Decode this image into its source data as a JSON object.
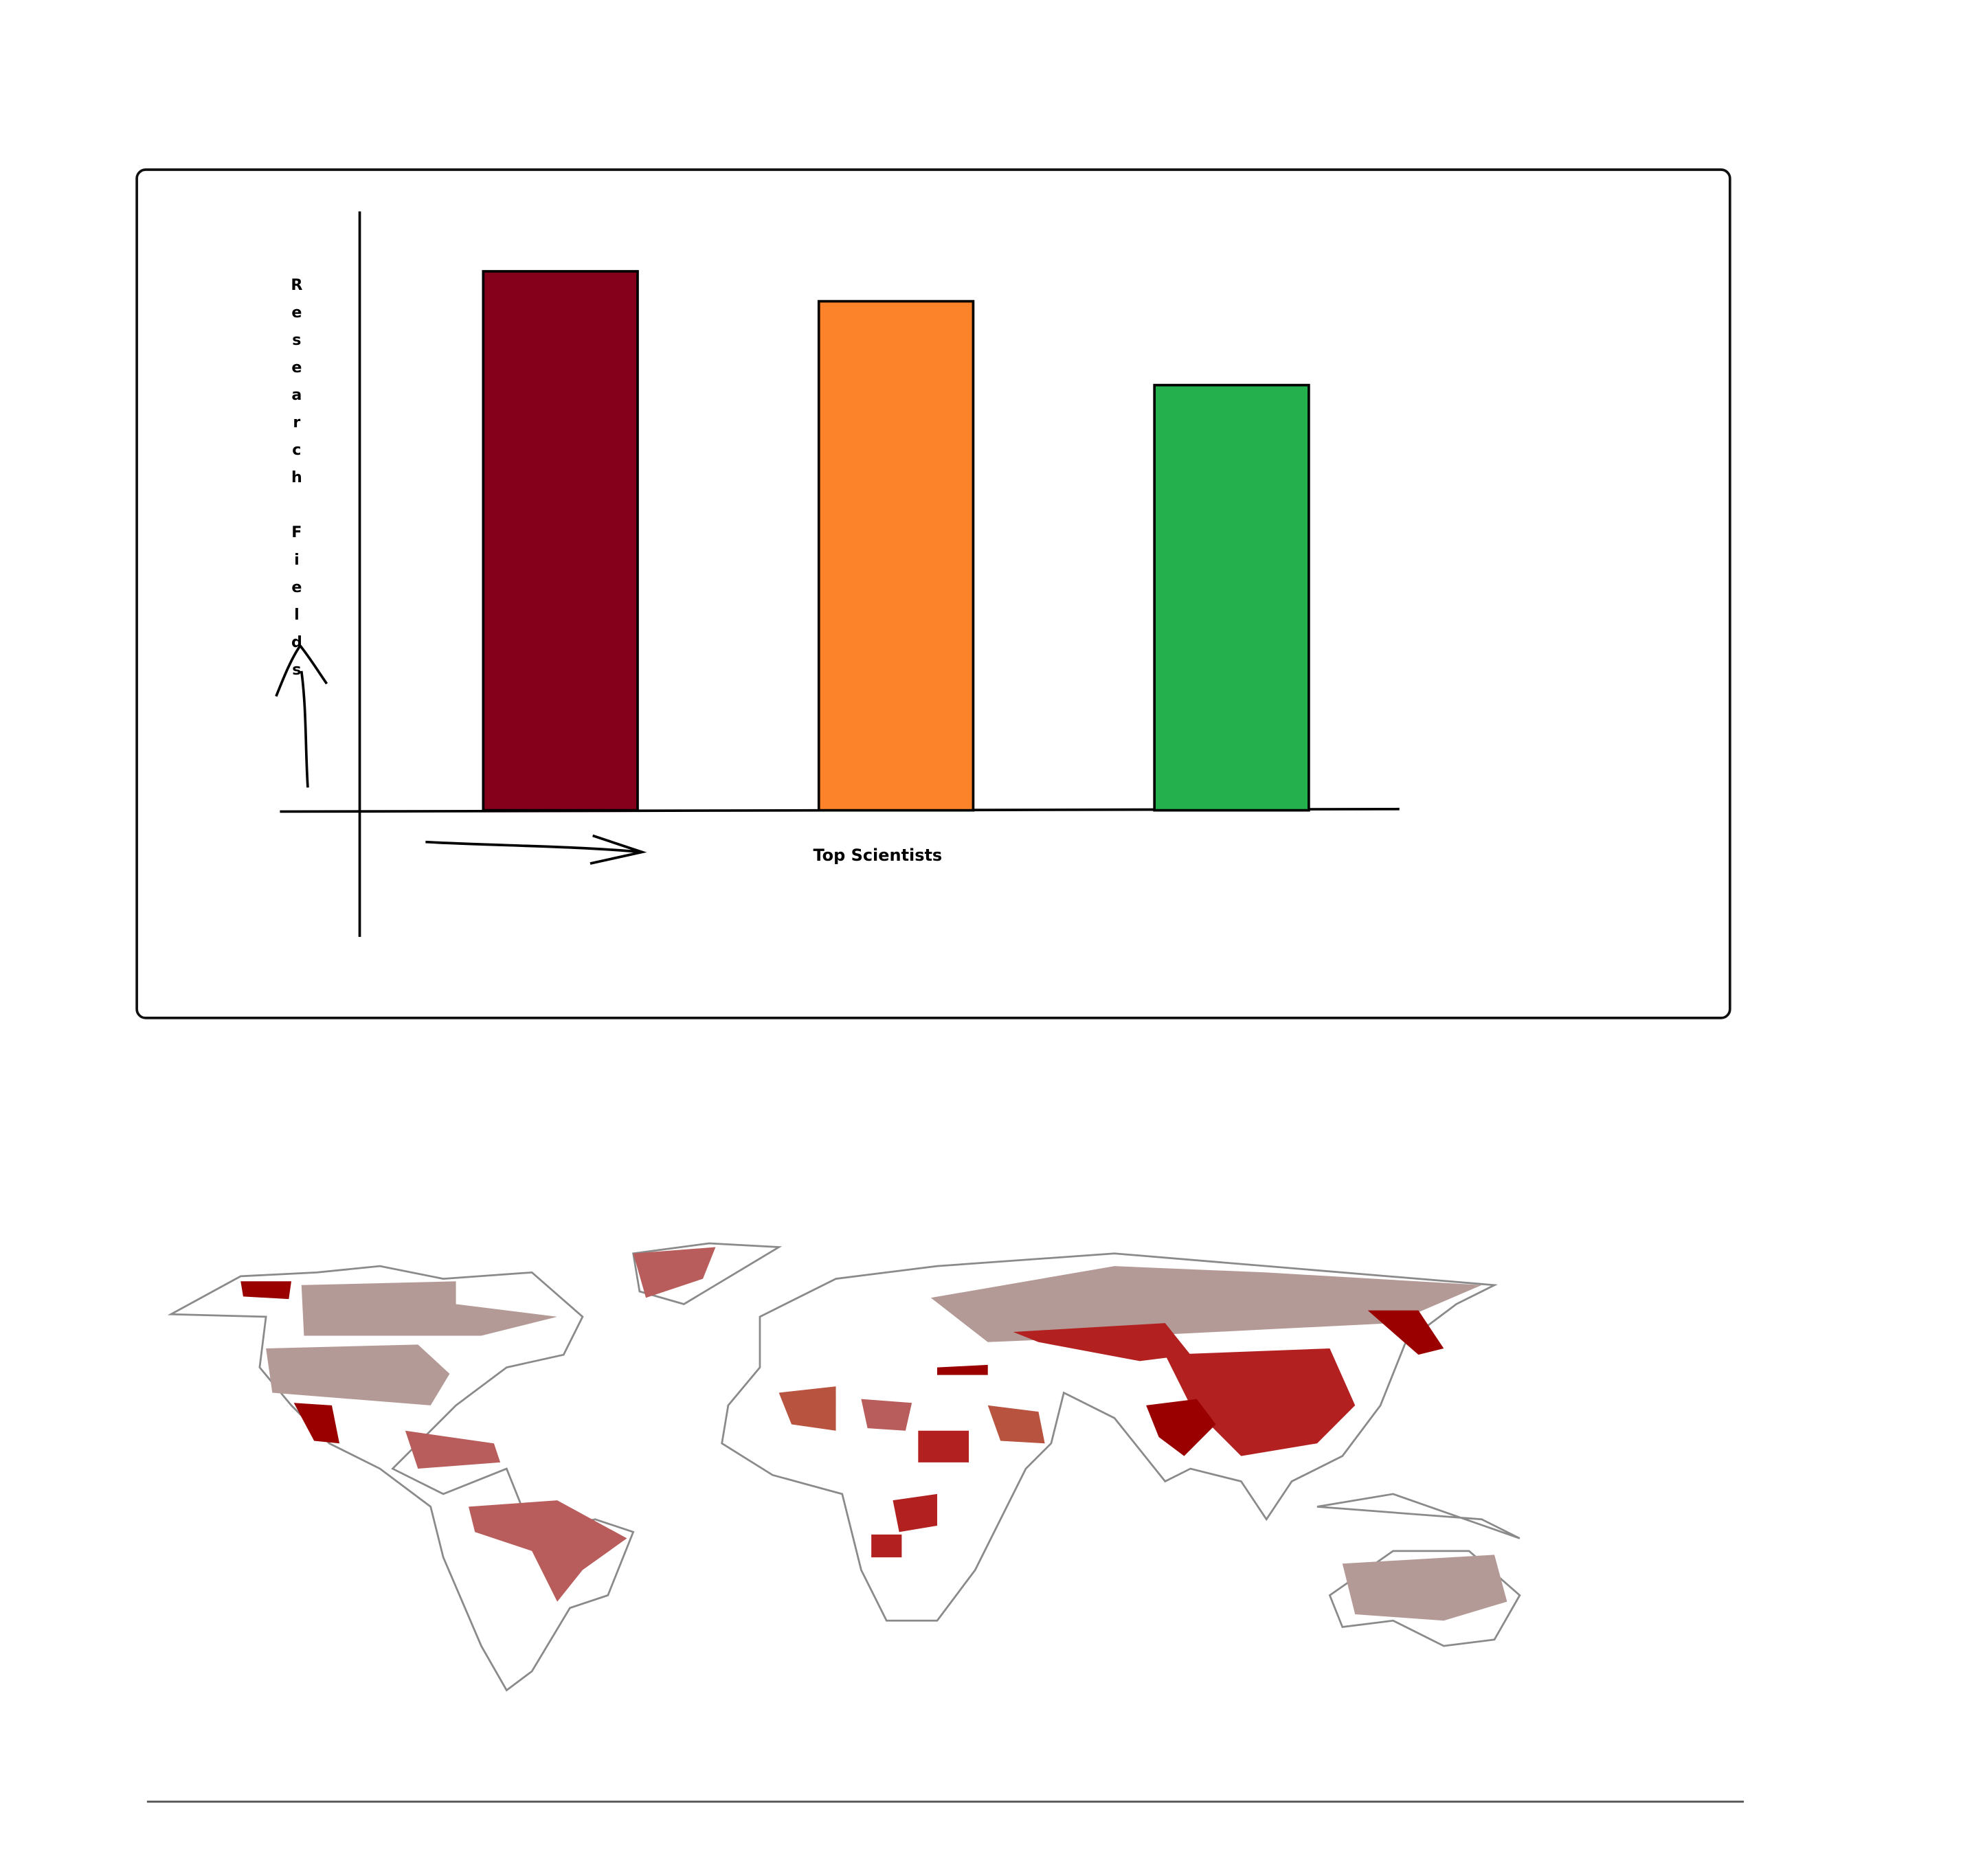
{
  "chart_data": {
    "type": "bar",
    "x_label": "Top Scientists",
    "y_label": "Research Fields",
    "categories": [
      null,
      null,
      null
    ],
    "values": [
      90,
      85,
      71
    ],
    "colors": [
      "#85001a",
      "#fc832a",
      "#24b04c"
    ],
    "ylim": [
      0,
      100
    ]
  }
}
